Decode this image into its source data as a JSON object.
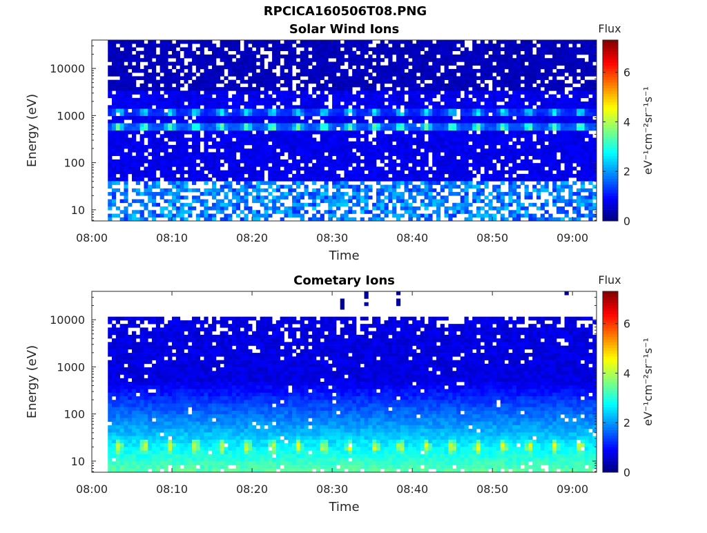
{
  "figure": {
    "filename": "RPCICA160506T08.PNG"
  },
  "chart_data": [
    {
      "type": "heatmap",
      "title": "Solar Wind Ions",
      "xlabel": "Time",
      "ylabel": "Energy (eV)",
      "x_ticks": [
        "08:00",
        "08:10",
        "08:20",
        "08:30",
        "08:40",
        "08:50",
        "09:00"
      ],
      "x_range": [
        "08:00",
        "09:03"
      ],
      "data_start": "08:02",
      "y_scale": "log",
      "y_ticks": [
        10,
        100,
        1000,
        10000
      ],
      "y_range": [
        5.8,
        40000
      ],
      "colorbar": {
        "label": "Flux",
        "units": "eV⁻¹cm⁻²sr⁻¹s⁻¹",
        "ticks": [
          0,
          2,
          4,
          6
        ],
        "range": [
          0,
          7.3
        ],
        "colormap": "jet"
      },
      "periodic_features": [
        {
          "energy_eV": 600,
          "flux": 3.3
        },
        {
          "energy_eV": 1200,
          "flux": 2.6
        }
      ],
      "period_minutes": 3.2
    },
    {
      "type": "heatmap",
      "title": "Cometary Ions",
      "xlabel": "Time",
      "ylabel": "Energy (eV)",
      "x_ticks": [
        "08:00",
        "08:10",
        "08:20",
        "08:30",
        "08:40",
        "08:50",
        "09:00"
      ],
      "x_range": [
        "08:00",
        "09:03"
      ],
      "data_start": "08:02",
      "y_scale": "log",
      "y_ticks": [
        10,
        100,
        1000,
        10000
      ],
      "y_range": [
        5.8,
        40000
      ],
      "colorbar": {
        "label": "Flux",
        "units": "eV⁻¹cm⁻²sr⁻¹s⁻¹",
        "ticks": [
          0,
          2,
          4,
          6
        ],
        "range": [
          0,
          7.3
        ],
        "colormap": "jet"
      },
      "periodic_features": [
        {
          "energy_eV": 20,
          "flux": 4.6
        }
      ],
      "period_minutes": 3.2,
      "max_energy_eV": 11000,
      "high_energy_spikes": [
        "08:31",
        "08:34",
        "08:38",
        "08:59"
      ]
    }
  ]
}
